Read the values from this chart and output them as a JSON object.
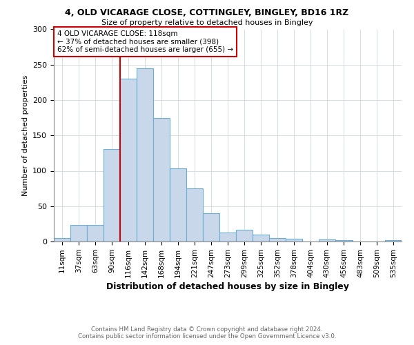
{
  "title1": "4, OLD VICARAGE CLOSE, COTTINGLEY, BINGLEY, BD16 1RZ",
  "title2": "Size of property relative to detached houses in Bingley",
  "xlabel": "Distribution of detached houses by size in Bingley",
  "ylabel": "Number of detached properties",
  "bin_labels": [
    "11sqm",
    "37sqm",
    "63sqm",
    "90sqm",
    "116sqm",
    "142sqm",
    "168sqm",
    "194sqm",
    "221sqm",
    "247sqm",
    "273sqm",
    "299sqm",
    "325sqm",
    "352sqm",
    "378sqm",
    "404sqm",
    "430sqm",
    "456sqm",
    "483sqm",
    "509sqm",
    "535sqm"
  ],
  "bin_edges": [
    11,
    37,
    63,
    90,
    116,
    142,
    168,
    194,
    221,
    247,
    273,
    299,
    325,
    352,
    378,
    404,
    430,
    456,
    483,
    509,
    535,
    561
  ],
  "counts": [
    5,
    23,
    23,
    131,
    230,
    245,
    175,
    103,
    75,
    40,
    13,
    17,
    10,
    5,
    4,
    0,
    3,
    2,
    0,
    0,
    2
  ],
  "bar_color": "#c8d8ea",
  "bar_edge_color": "#6baed6",
  "vline_x": 116,
  "vline_color": "#cc0000",
  "annotation_text": "4 OLD VICARAGE CLOSE: 118sqm\n← 37% of detached houses are smaller (398)\n62% of semi-detached houses are larger (655) →",
  "annotation_box_color": "#ffffff",
  "annotation_box_edge": "#cc0000",
  "footnote1": "Contains HM Land Registry data © Crown copyright and database right 2024.",
  "footnote2": "Contains public sector information licensed under the Open Government Licence v3.0.",
  "ylim": [
    0,
    300
  ],
  "background_color": "#ffffff",
  "plot_background": "#ffffff",
  "grid_color": "#d0d8e0"
}
